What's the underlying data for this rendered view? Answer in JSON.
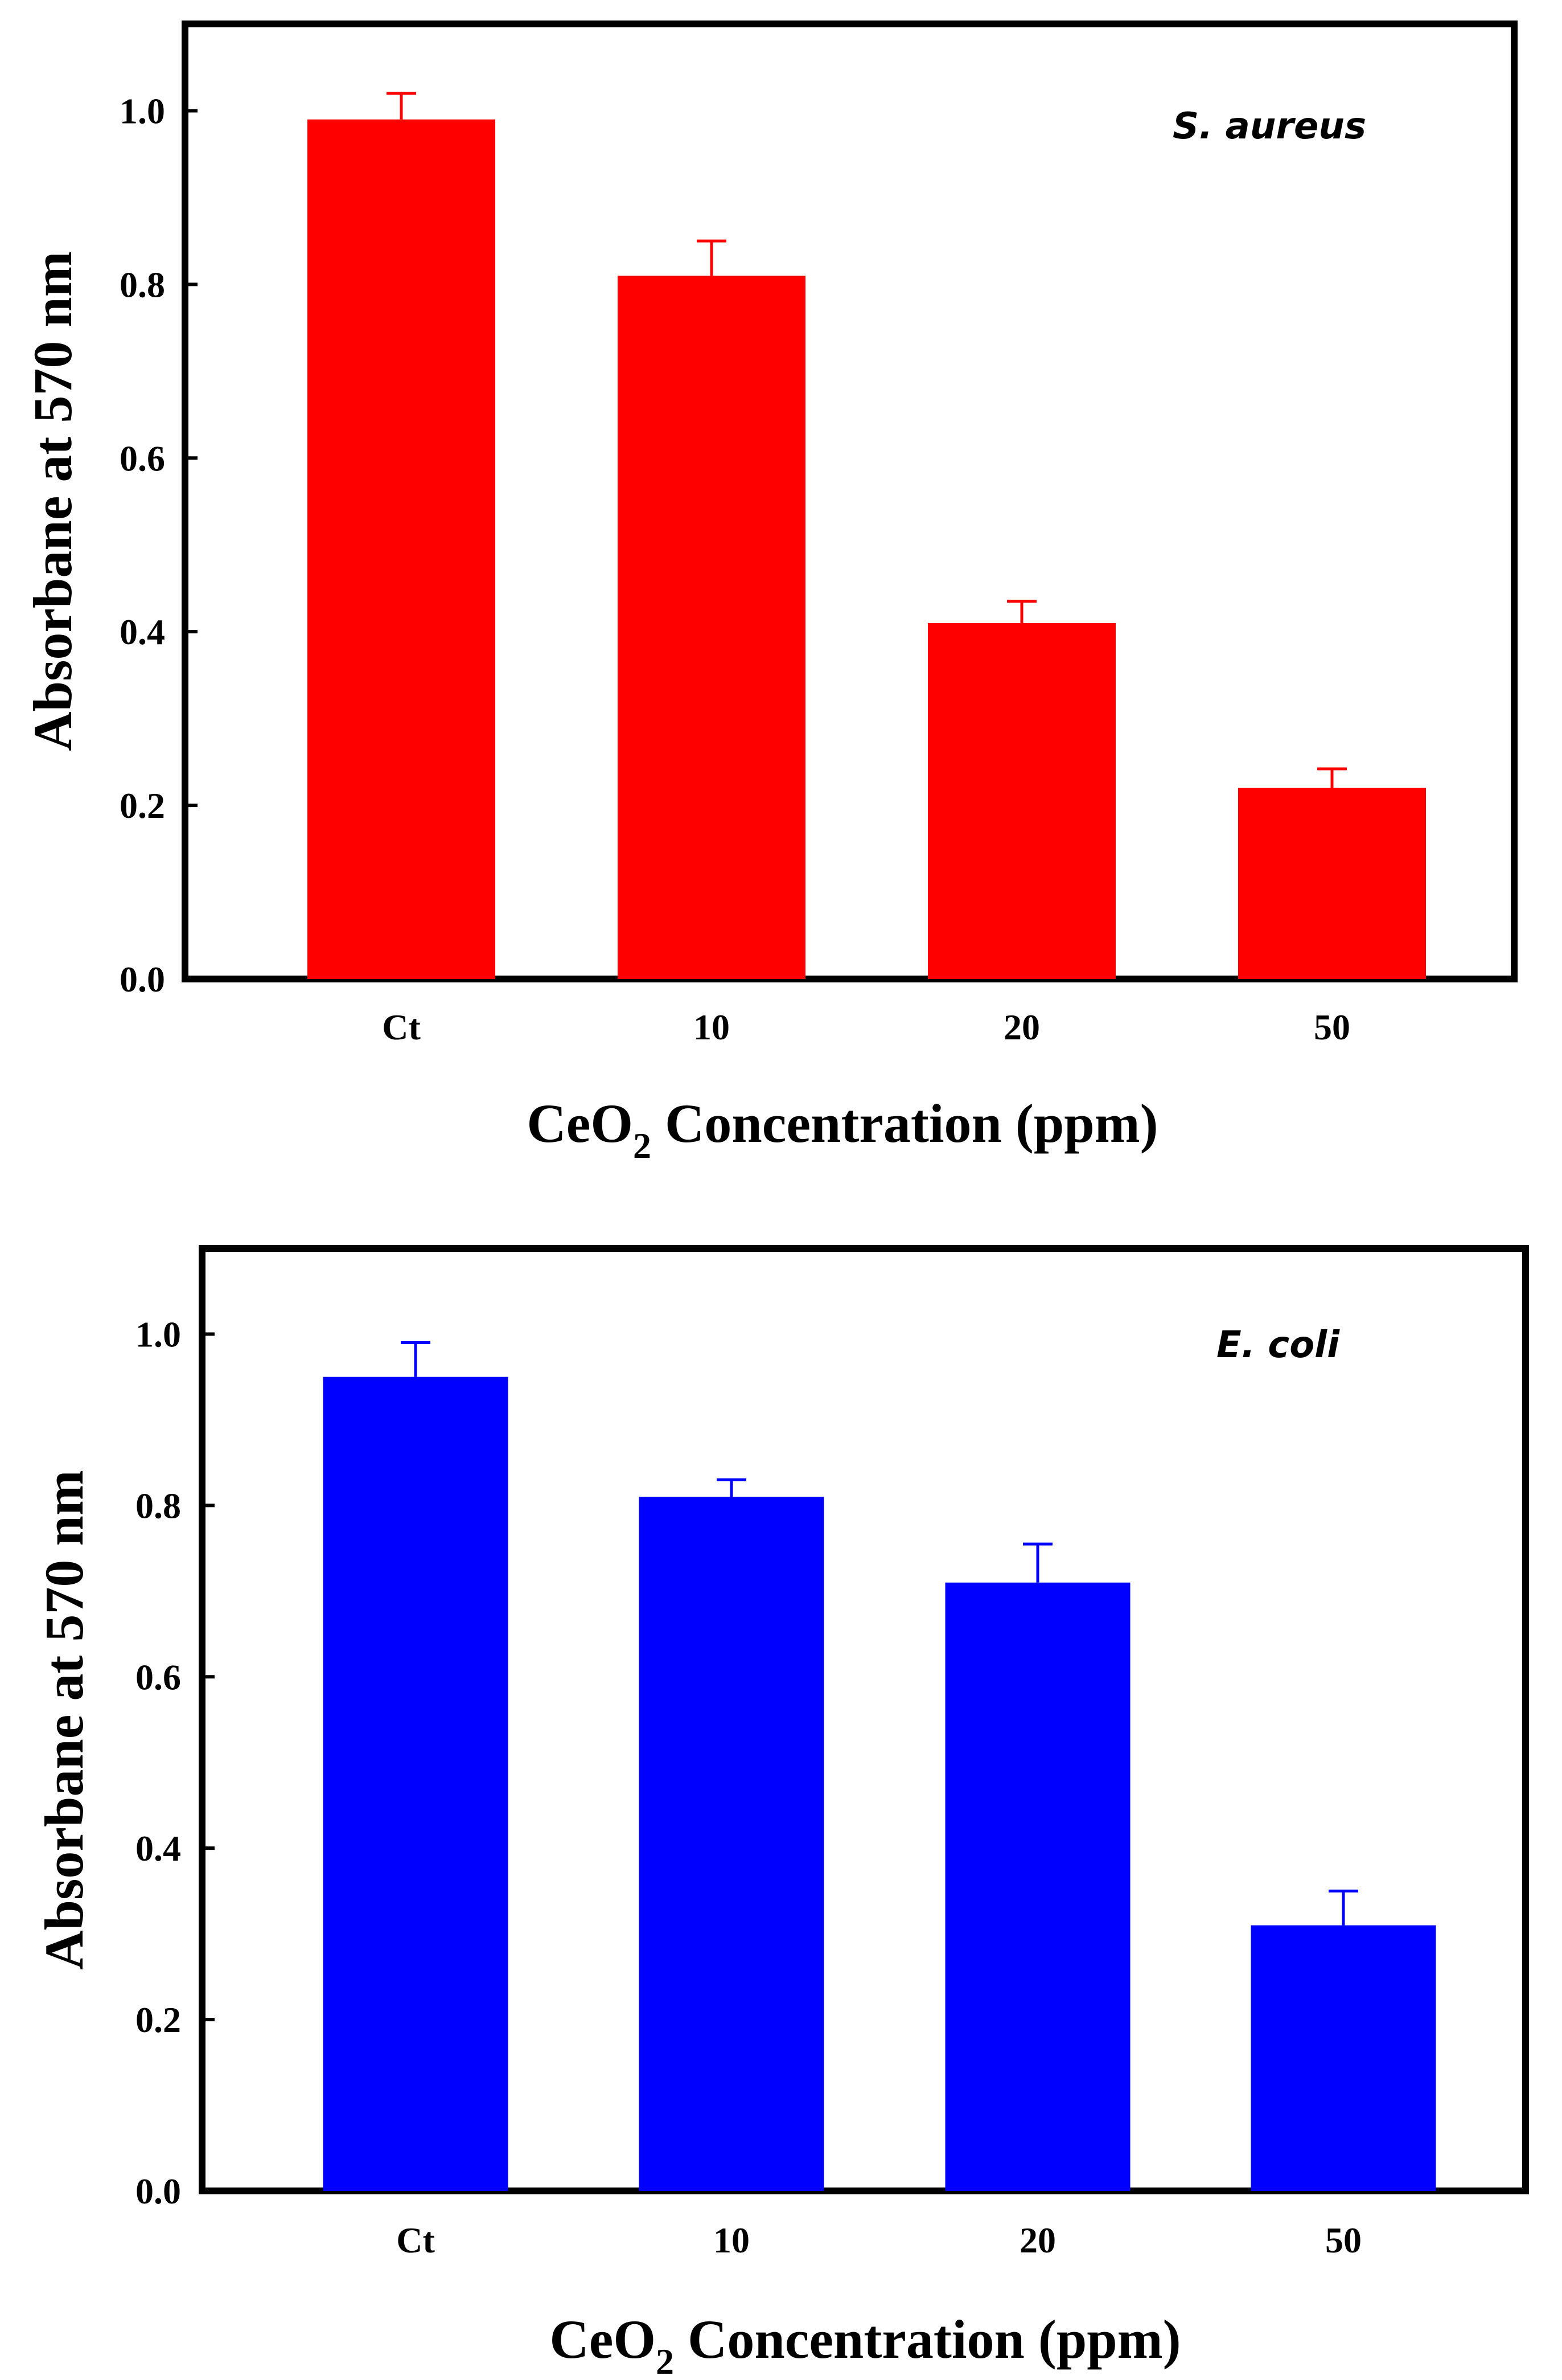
{
  "chart_data": [
    {
      "type": "bar",
      "name": "s-aureus",
      "categories": [
        "Ct",
        "10",
        "20",
        "50"
      ],
      "values": [
        0.99,
        0.81,
        0.41,
        0.22
      ],
      "error_bars": [
        0.03,
        0.04,
        0.025,
        0.022
      ],
      "bar_color": "#ff0000",
      "annotation": "S. aureus",
      "xlabel_main": "CeO",
      "xlabel_sub": "2",
      "xlabel_rest": " Concentration (ppm)",
      "ylabel": "Absorbane at 570 nm",
      "ylim": [
        0.0,
        1.1
      ],
      "yticks": [
        "0.0",
        "0.2",
        "0.4",
        "0.6",
        "0.8",
        "1.0"
      ],
      "ytick_values": [
        0.0,
        0.2,
        0.4,
        0.6,
        0.8,
        1.0
      ]
    },
    {
      "type": "bar",
      "name": "e-coli",
      "categories": [
        "Ct",
        "10",
        "20",
        "50"
      ],
      "values": [
        0.95,
        0.81,
        0.71,
        0.31
      ],
      "error_bars": [
        0.04,
        0.02,
        0.045,
        0.04
      ],
      "bar_color": "#0000ff",
      "annotation": "E. coli",
      "xlabel_main": "CeO",
      "xlabel_sub": "2",
      "xlabel_rest": " Concentration (ppm)",
      "ylabel": "Absorbane at 570 nm",
      "ylim": [
        0.0,
        1.1
      ],
      "yticks": [
        "0.0",
        "0.2",
        "0.4",
        "0.6",
        "0.8",
        "1.0"
      ],
      "ytick_values": [
        0.0,
        0.2,
        0.4,
        0.6,
        0.8,
        1.0
      ]
    }
  ]
}
